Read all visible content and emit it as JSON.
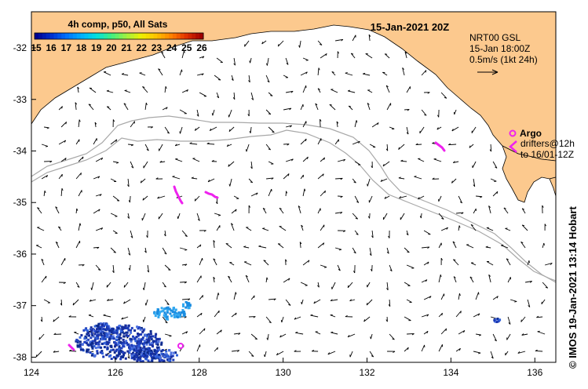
{
  "map": {
    "title": "15-Jan-2021 20Z",
    "colorbar": {
      "title": "4h comp, p50, All Sats",
      "ticks": [
        "15",
        "16",
        "17",
        "18",
        "19",
        "20",
        "21",
        "22",
        "23",
        "24",
        "25",
        "26"
      ],
      "colors": [
        "#000090",
        "#0030d0",
        "#0070ff",
        "#00b0ff",
        "#00e0e0",
        "#40f080",
        "#a0f040",
        "#f0f000",
        "#ffc000",
        "#ff8000",
        "#e03000",
        "#a00000"
      ]
    },
    "currents": {
      "line1": "NRT00 GSL",
      "line2": "15-Jan 18:00Z",
      "line3": "0.5m/s (1kt 24h)"
    },
    "legend": {
      "argo": "Argo",
      "drifters1": "drifters@12h",
      "drifters2": "to 16/01-12Z"
    },
    "credit": "© IMOS 19-Jan-2021 13:14 Hobart",
    "x_ticks": [
      "124",
      "126",
      "128",
      "130",
      "132",
      "134",
      "136"
    ],
    "y_ticks": [
      "-32",
      "-33",
      "-34",
      "-35",
      "-36",
      "-37",
      "-38"
    ],
    "x_range": [
      124,
      136.5
    ],
    "y_range": [
      -38.1,
      -31.3
    ],
    "colors": {
      "land": "#fcc98e",
      "drifter": "#ee22ee",
      "vector": "#000000",
      "isobath": "#a8a8a8"
    }
  }
}
